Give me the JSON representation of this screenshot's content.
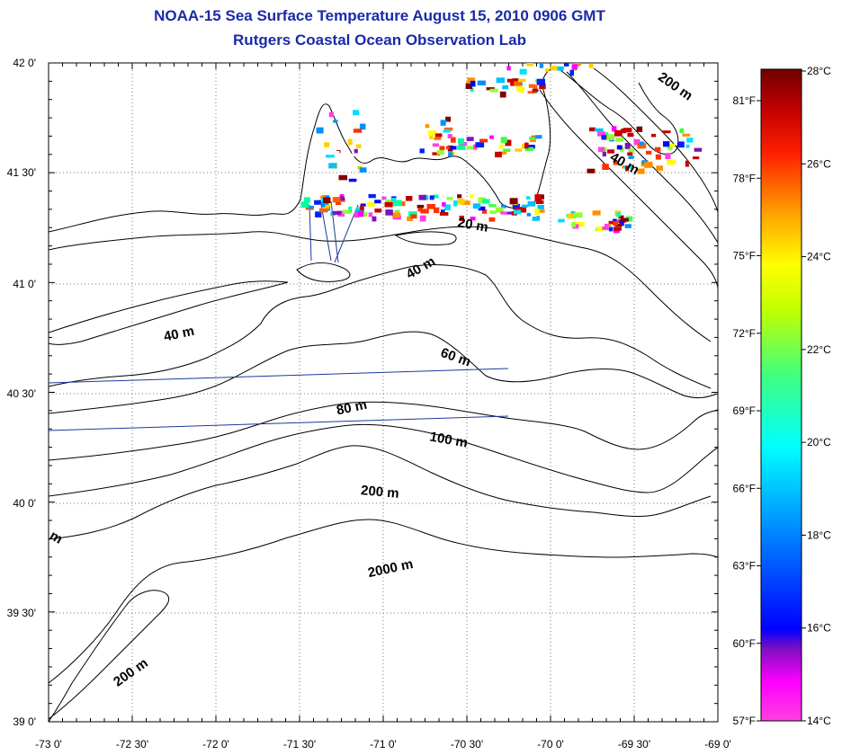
{
  "title": {
    "line1": "NOAA-15 Sea Surface Temperature August 15, 2010 0906 GMT",
    "line2": "Rutgers Coastal Ocean Observation Lab"
  },
  "map": {
    "lon_ticks": [
      "-73 0'",
      "-72 30'",
      "-72 0'",
      "-71 30'",
      "-71 0'",
      "-70 30'",
      "-70 0'",
      "-69 30'",
      "-69 0'"
    ],
    "lat_ticks": [
      "42 0'",
      "41 30'",
      "41 0'",
      "40 30'",
      "40 0'",
      "39 30'",
      "39 0'"
    ],
    "contour_labels": [
      "200 m",
      "40 m",
      "20 m",
      "40 m",
      "40 m",
      "60 m",
      "80 m",
      "100 m",
      "200 m",
      "2000 m",
      "200 m",
      "m"
    ]
  },
  "colorbar": {
    "celsius": [
      "28°C",
      "26°C",
      "24°C",
      "22°C",
      "20°C",
      "18°C",
      "16°C",
      "14°C"
    ],
    "fahrenheit": [
      "81°F",
      "78°F",
      "75°F",
      "72°F",
      "69°F",
      "66°F",
      "63°F",
      "60°F",
      "57°F"
    ],
    "colors": [
      "#800000",
      "#c80000",
      "#ff3000",
      "#ff9000",
      "#ffff00",
      "#90ff30",
      "#00ffa0",
      "#00e0ff",
      "#0090ff",
      "#0020ff",
      "#0000ff",
      "#8010c0",
      "#ff00ff",
      "#ff40e0"
    ]
  }
}
